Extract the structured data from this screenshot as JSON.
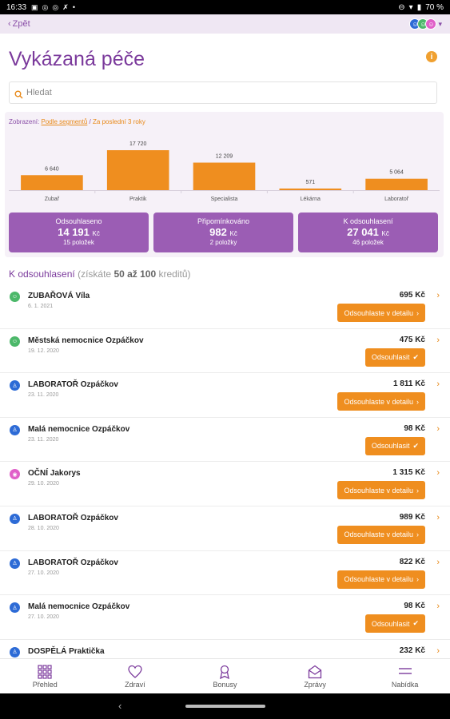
{
  "status_bar": {
    "time": "16:33",
    "battery": "70 %"
  },
  "topbar": {
    "back_label": "Zpět"
  },
  "header": {
    "title": "Vykázaná péče"
  },
  "search": {
    "placeholder": "Hledat"
  },
  "filter": {
    "prefix": "Zobrazení:",
    "segment_link": "Podle segmentů",
    "separator": "/",
    "range": "Za poslední 3 roky"
  },
  "chart_data": {
    "type": "bar",
    "categories": [
      "Zubař",
      "Praktik",
      "Specialista",
      "Lékárna",
      "Laboratoř"
    ],
    "values": [
      6640,
      17720,
      12209,
      571,
      5064
    ],
    "value_labels": [
      "6 640",
      "17 720",
      "12 209",
      "571",
      "5 064"
    ],
    "bar_color": "#ef8e1f",
    "ylim": [
      0,
      17720
    ]
  },
  "cards": [
    {
      "title": "Odsouhlaseno",
      "amount": "14 191",
      "unit": "Kč",
      "count": "15 položek"
    },
    {
      "title": "Připomínkováno",
      "amount": "982",
      "unit": "Kč",
      "count": "2 položky"
    },
    {
      "title": "K odsouhlasení",
      "amount": "27 041",
      "unit": "Kč",
      "count": "46 položek"
    }
  ],
  "section": {
    "title": "K odsouhlasení",
    "hint_prefix": "(získáte",
    "hint_range": "50 až 100",
    "hint_suffix": "kreditů)"
  },
  "items": [
    {
      "icon": "tooth-icon",
      "color": "green",
      "name": "ZUBAŘOVÁ Víla",
      "date": "6. 1. 2021",
      "amount": "695 Kč",
      "button": "Odsouhlaste v detailu",
      "button_icon": "chevron-right-icon"
    },
    {
      "icon": "tooth-icon",
      "color": "green",
      "name": "Městská nemocnice Ozpáčkov",
      "date": "19. 12. 2020",
      "amount": "475 Kč",
      "button": "Odsouhlasit",
      "button_icon": "check-icon"
    },
    {
      "icon": "doctor-icon",
      "color": "blue",
      "name": "LABORATOŘ Ozpáčkov",
      "date": "23. 11. 2020",
      "amount": "1 811 Kč",
      "button": "Odsouhlaste v detailu",
      "button_icon": "chevron-right-icon"
    },
    {
      "icon": "doctor-icon",
      "color": "blue",
      "name": "Malá nemocnice Ozpáčkov",
      "date": "23. 11. 2020",
      "amount": "98 Kč",
      "button": "Odsouhlasit",
      "button_icon": "check-icon"
    },
    {
      "icon": "eye-icon",
      "color": "pink",
      "name": "OČNÍ Jakorys",
      "date": "29. 10. 2020",
      "amount": "1 315 Kč",
      "button": "Odsouhlaste v detailu",
      "button_icon": "chevron-right-icon"
    },
    {
      "icon": "doctor-icon",
      "color": "blue",
      "name": "LABORATOŘ Ozpáčkov",
      "date": "28. 10. 2020",
      "amount": "989 Kč",
      "button": "Odsouhlaste v detailu",
      "button_icon": "chevron-right-icon"
    },
    {
      "icon": "doctor-icon",
      "color": "blue",
      "name": "LABORATOŘ Ozpáčkov",
      "date": "27. 10. 2020",
      "amount": "822 Kč",
      "button": "Odsouhlaste v detailu",
      "button_icon": "chevron-right-icon"
    },
    {
      "icon": "doctor-icon",
      "color": "blue",
      "name": "Malá nemocnice Ozpáčkov",
      "date": "27. 10. 2020",
      "amount": "98 Kč",
      "button": "Odsouhlasit",
      "button_icon": "check-icon"
    },
    {
      "icon": "doctor-icon",
      "color": "blue",
      "name": "DOSPĚLÁ Praktička",
      "date": "",
      "amount": "232 Kč",
      "button": "",
      "button_icon": ""
    }
  ],
  "bottom_nav": [
    {
      "icon": "grid-icon",
      "label": "Přehled"
    },
    {
      "icon": "heart-icon",
      "label": "Zdraví"
    },
    {
      "icon": "badge-icon",
      "label": "Bonusy"
    },
    {
      "icon": "envelope-icon",
      "label": "Zprávy"
    },
    {
      "icon": "menu-icon",
      "label": "Nabídka"
    }
  ],
  "colors": {
    "accent": "#7b3a9c",
    "card": "#9b5db4",
    "orange": "#ef8e1f",
    "topbar": "#efe7f3"
  }
}
